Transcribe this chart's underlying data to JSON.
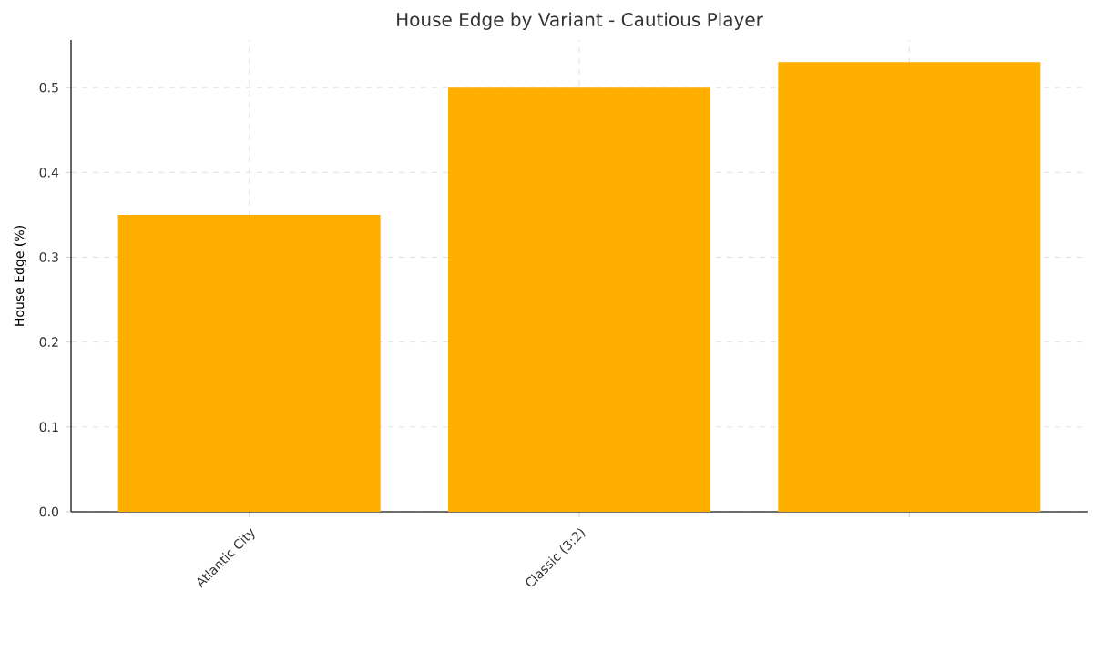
{
  "chart_data": {
    "type": "bar",
    "title": "House Edge by Variant - Cautious Player",
    "ylabel": "House Edge (%)",
    "categories": [
      "Atlantic City",
      "Classic (3:2)",
      null
    ],
    "values": [
      0.35,
      0.5,
      0.53
    ],
    "color": "#ffae00",
    "ylim": [
      0,
      0.556
    ],
    "yticks": [
      {
        "value": 0,
        "label": "0.0"
      },
      0.1,
      0.2,
      0.3,
      0.4,
      0.5
    ],
    "grid": true
  }
}
